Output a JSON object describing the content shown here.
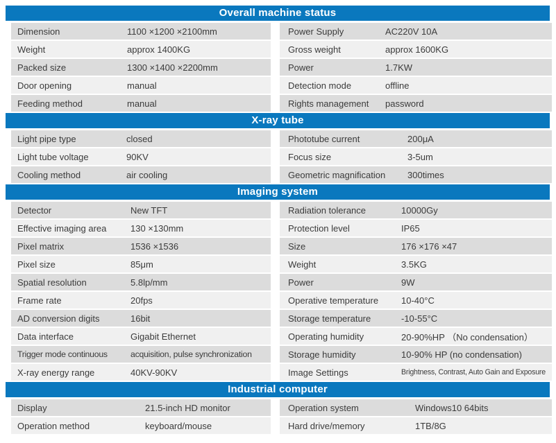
{
  "theme": {
    "accent": "#0a78be",
    "row_dark": "#dcdcdc",
    "row_light": "#f0f0f0",
    "header_text": "#ffffff",
    "text": "#3b3b3b"
  },
  "sections": [
    {
      "title": "Overall machine status",
      "rows": [
        {
          "left": {
            "label": "Dimension",
            "value": "1100 ×1200 ×2100mm"
          },
          "right": {
            "label": "Power Supply",
            "value": "AC220V 10A"
          }
        },
        {
          "left": {
            "label": "Weight",
            "value": "approx 1400KG"
          },
          "right": {
            "label": "Gross weight",
            "value": "approx 1600KG"
          }
        },
        {
          "left": {
            "label": "Packed size",
            "value": "1300 ×1400 ×2200mm"
          },
          "right": {
            "label": "Power",
            "value": "1.7KW"
          }
        },
        {
          "left": {
            "label": "Door opening",
            "value": "manual"
          },
          "right": {
            "label": "Detection mode",
            "value": "offline"
          }
        },
        {
          "left": {
            "label": "Feeding method",
            "value": "manual"
          },
          "right": {
            "label": "Rights management",
            "value": "password"
          }
        }
      ]
    },
    {
      "title": "X-ray tube",
      "rows": [
        {
          "left": {
            "label": "Light pipe type",
            "value": "closed"
          },
          "right": {
            "label": "Phototube current",
            "value": "200μA"
          }
        },
        {
          "left": {
            "label": "Light tube voltage",
            "value": "90KV"
          },
          "right": {
            "label": "Focus size",
            "value": "3-5um"
          }
        },
        {
          "left": {
            "label": "Cooling method",
            "value": "air cooling"
          },
          "right": {
            "label": "Geometric magnification",
            "value": "300times"
          }
        }
      ]
    },
    {
      "title": "Imaging system",
      "rows": [
        {
          "left": {
            "label": "Detector",
            "value": "New TFT"
          },
          "right": {
            "label": "Radiation tolerance",
            "value": "10000Gy"
          }
        },
        {
          "left": {
            "label": "Effective imaging area",
            "value": "130 ×130mm"
          },
          "right": {
            "label": "Protection level",
            "value": "IP65"
          }
        },
        {
          "left": {
            "label": "Pixel matrix",
            "value": "1536 ×1536"
          },
          "right": {
            "label": "Size",
            "value": "176 ×176 ×47"
          }
        },
        {
          "left": {
            "label": "Pixel size",
            "value": "85μm"
          },
          "right": {
            "label": "Weight",
            "value": "3.5KG"
          }
        },
        {
          "left": {
            "label": "Spatial resolution",
            "value": "5.8lp/mm"
          },
          "right": {
            "label": "Power",
            "value": "9W"
          }
        },
        {
          "left": {
            "label": "Frame rate",
            "value": "20fps"
          },
          "right": {
            "label": "Operative temperature",
            "value": "10-40°C"
          }
        },
        {
          "left": {
            "label": "AD conversion digits",
            "value": "16bit"
          },
          "right": {
            "label": "Storage temperature",
            "value": "-10-55°C"
          }
        },
        {
          "left": {
            "label": "Data interface",
            "value": "Gigabit Ethernet"
          },
          "right": {
            "label": "Operating humidity",
            "value": "20-90%HP （No condensation）"
          }
        },
        {
          "left": {
            "label": "Trigger mode continuous",
            "value": "acquisition, pulse synchronization"
          },
          "right": {
            "label": "Storage humidity",
            "value": "10-90% HP (no condensation)"
          }
        },
        {
          "left": {
            "label": "X-ray energy range",
            "value": "40KV-90KV"
          },
          "right": {
            "label": "Image Settings",
            "value": "Brightness, Contrast, Auto Gain and Exposure"
          }
        }
      ]
    },
    {
      "title": "Industrial computer",
      "rows": [
        {
          "left": {
            "label": "Display",
            "value": "21.5-inch HD monitor"
          },
          "right": {
            "label": "Operation system",
            "value": "Windows10  64bits"
          }
        },
        {
          "left": {
            "label": "Operation method",
            "value": "keyboard/mouse"
          },
          "right": {
            "label": "Hard drive/memory",
            "value": "1TB/8G"
          }
        }
      ]
    }
  ]
}
